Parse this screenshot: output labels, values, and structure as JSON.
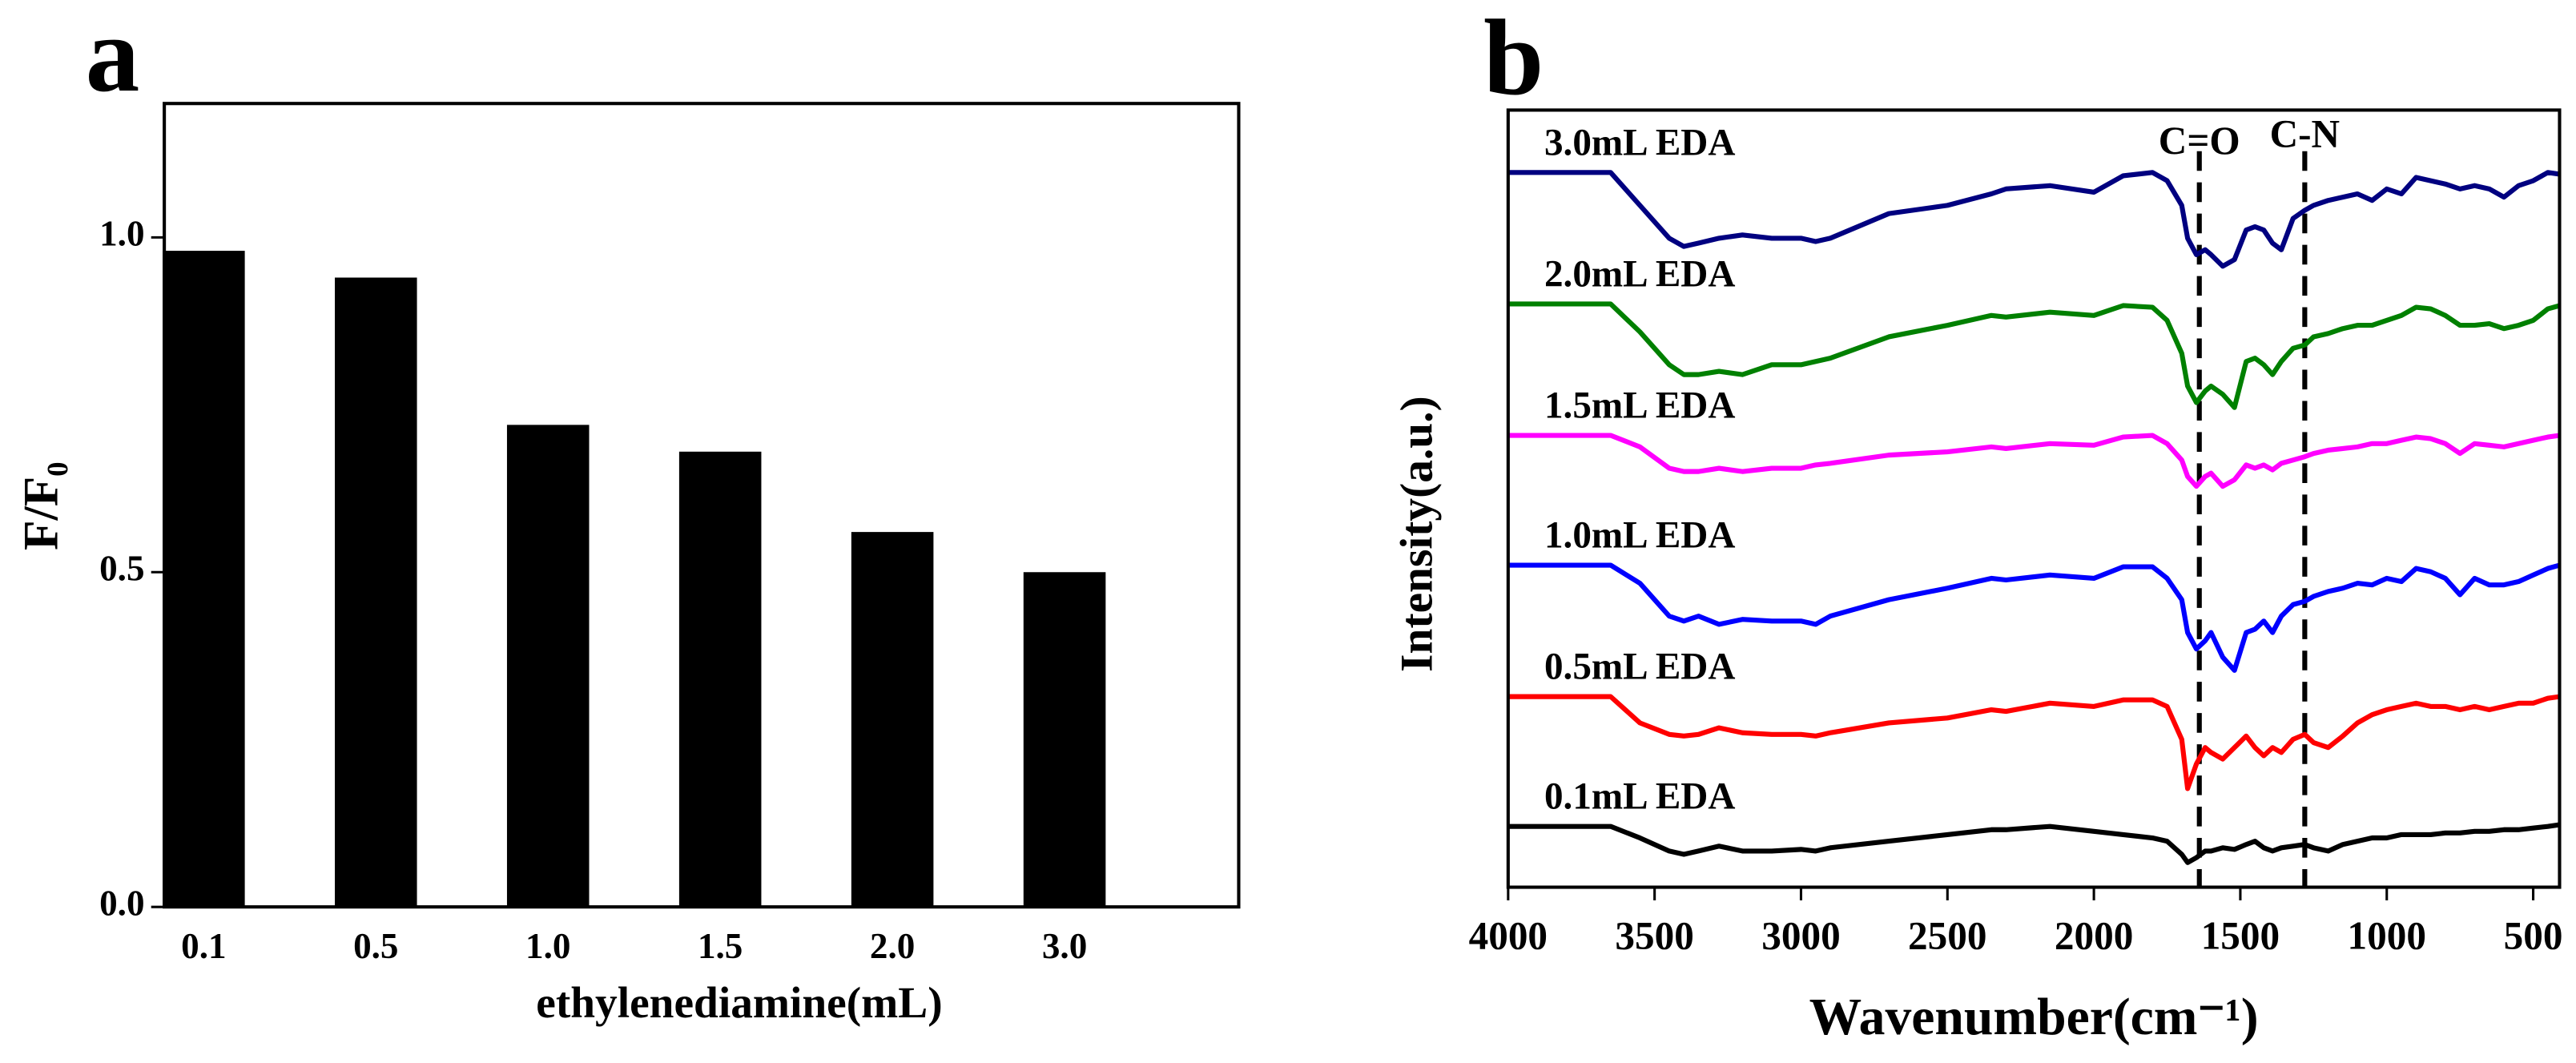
{
  "chart_data": [
    {
      "type": "bar",
      "panel": "a",
      "xlabel": "ethylenediamine(mL)",
      "ylabel": "F/F₀",
      "categories": [
        "0.1",
        "0.5",
        "1.0",
        "1.5",
        "2.0",
        "3.0"
      ],
      "values": [
        0.98,
        0.94,
        0.72,
        0.68,
        0.56,
        0.5
      ],
      "color": "#000000",
      "ylim": [
        0,
        1.2
      ],
      "yticks": [
        {
          "value": 0,
          "label": "0.0"
        },
        0.5,
        {
          "value": 1,
          "label": "1.0"
        }
      ]
    },
    {
      "type": "line",
      "panel": "b",
      "xlabel": "Wavenumber(cm⁻¹)",
      "ylabel": "Intensity(a.u.)",
      "xlim": [
        4000,
        410
      ],
      "xticks": [
        4000,
        3500,
        3000,
        2500,
        2000,
        1500,
        1000,
        500
      ],
      "ylim": [
        0,
        473
      ],
      "annotations": [
        {
          "label": "C=O",
          "x": 1640
        },
        {
          "label": "C-N",
          "x": 1280
        }
      ],
      "x": [
        4000,
        3800,
        3650,
        3550,
        3450,
        3400,
        3350,
        3280,
        3200,
        3100,
        3000,
        2950,
        2900,
        2700,
        2500,
        2350,
        2300,
        2150,
        2000,
        1900,
        1800,
        1750,
        1700,
        1680,
        1650,
        1620,
        1600,
        1560,
        1520,
        1480,
        1450,
        1420,
        1390,
        1360,
        1320,
        1280,
        1250,
        1200,
        1150,
        1100,
        1050,
        1000,
        950,
        900,
        850,
        800,
        750,
        700,
        650,
        600,
        550,
        500,
        450,
        410
      ],
      "series": [
        {
          "name": "3.0mL EDA",
          "color": "#000080",
          "values": [
            435,
            435,
            435,
            415,
            395,
            390,
            392,
            395,
            397,
            395,
            395,
            393,
            395,
            410,
            415,
            422,
            425,
            427,
            423,
            433,
            435,
            430,
            415,
            395,
            385,
            388,
            385,
            378,
            382,
            400,
            402,
            400,
            392,
            388,
            407,
            412,
            415,
            418,
            420,
            422,
            418,
            425,
            422,
            432,
            430,
            428,
            425,
            427,
            425,
            420,
            427,
            430,
            435,
            434
          ]
        },
        {
          "name": "2.0mL EDA",
          "color": "#008000",
          "values": [
            355,
            355,
            355,
            338,
            318,
            312,
            312,
            314,
            312,
            318,
            318,
            320,
            322,
            335,
            342,
            348,
            347,
            350,
            348,
            354,
            353,
            345,
            325,
            305,
            295,
            302,
            305,
            300,
            292,
            320,
            322,
            318,
            312,
            320,
            328,
            330,
            335,
            337,
            340,
            342,
            342,
            345,
            348,
            353,
            352,
            348,
            342,
            342,
            343,
            340,
            342,
            345,
            352,
            354
          ]
        },
        {
          "name": "1.5mL EDA",
          "color": "#ff00ff",
          "values": [
            275,
            275,
            275,
            268,
            255,
            253,
            253,
            255,
            253,
            255,
            255,
            257,
            258,
            263,
            265,
            268,
            267,
            270,
            269,
            274,
            275,
            270,
            260,
            250,
            244,
            250,
            252,
            244,
            248,
            257,
            255,
            257,
            254,
            258,
            260,
            262,
            264,
            266,
            267,
            268,
            270,
            270,
            272,
            274,
            273,
            270,
            264,
            270,
            269,
            268,
            270,
            272,
            274,
            275
          ]
        },
        {
          "name": "1.0mL EDA",
          "color": "#0000ff",
          "values": [
            196,
            196,
            196,
            185,
            165,
            162,
            165,
            160,
            163,
            162,
            162,
            160,
            165,
            175,
            182,
            188,
            187,
            190,
            188,
            195,
            195,
            188,
            175,
            155,
            145,
            150,
            155,
            140,
            132,
            155,
            157,
            162,
            155,
            165,
            172,
            174,
            177,
            180,
            182,
            185,
            184,
            188,
            186,
            194,
            192,
            188,
            178,
            188,
            184,
            184,
            186,
            190,
            194,
            196
          ]
        },
        {
          "name": "0.5mL EDA",
          "color": "#ff0000",
          "values": [
            116,
            116,
            116,
            100,
            93,
            92,
            93,
            97,
            94,
            93,
            93,
            92,
            94,
            100,
            103,
            108,
            107,
            112,
            110,
            114,
            114,
            110,
            90,
            60,
            75,
            85,
            82,
            78,
            85,
            92,
            85,
            80,
            85,
            82,
            90,
            93,
            88,
            85,
            92,
            100,
            105,
            108,
            110,
            112,
            110,
            110,
            108,
            110,
            108,
            110,
            112,
            112,
            115,
            116
          ]
        },
        {
          "name": "0.1mL EDA",
          "color": "#000000",
          "values": [
            37,
            37,
            37,
            30,
            22,
            20,
            22,
            25,
            22,
            22,
            23,
            22,
            24,
            28,
            32,
            35,
            35,
            37,
            34,
            32,
            30,
            28,
            20,
            15,
            18,
            22,
            22,
            24,
            23,
            26,
            28,
            24,
            22,
            24,
            25,
            26,
            24,
            22,
            26,
            28,
            30,
            30,
            32,
            32,
            32,
            33,
            33,
            34,
            34,
            35,
            35,
            36,
            37,
            38
          ]
        }
      ]
    }
  ]
}
